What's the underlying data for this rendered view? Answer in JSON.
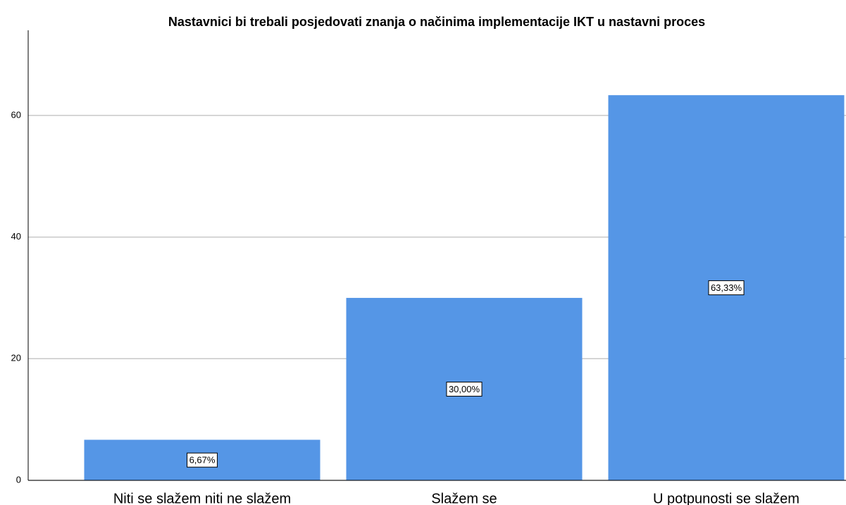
{
  "chart_data": {
    "type": "bar",
    "title": "Nastavnici bi trebali posjedovati znanja o načinima implementacije IKT u nastavni proces",
    "categories": [
      "Niti se slažem niti ne slažem",
      "Slažem se",
      "U potpunosti se slažem"
    ],
    "values": [
      6.67,
      30,
      63.33
    ],
    "value_labels": [
      "6,67%",
      "30,00%",
      "63,33%"
    ],
    "color": "#5596e6",
    "ylim": [
      0,
      74
    ],
    "yticks": [
      0,
      20,
      40,
      60
    ],
    "grid": true
  }
}
